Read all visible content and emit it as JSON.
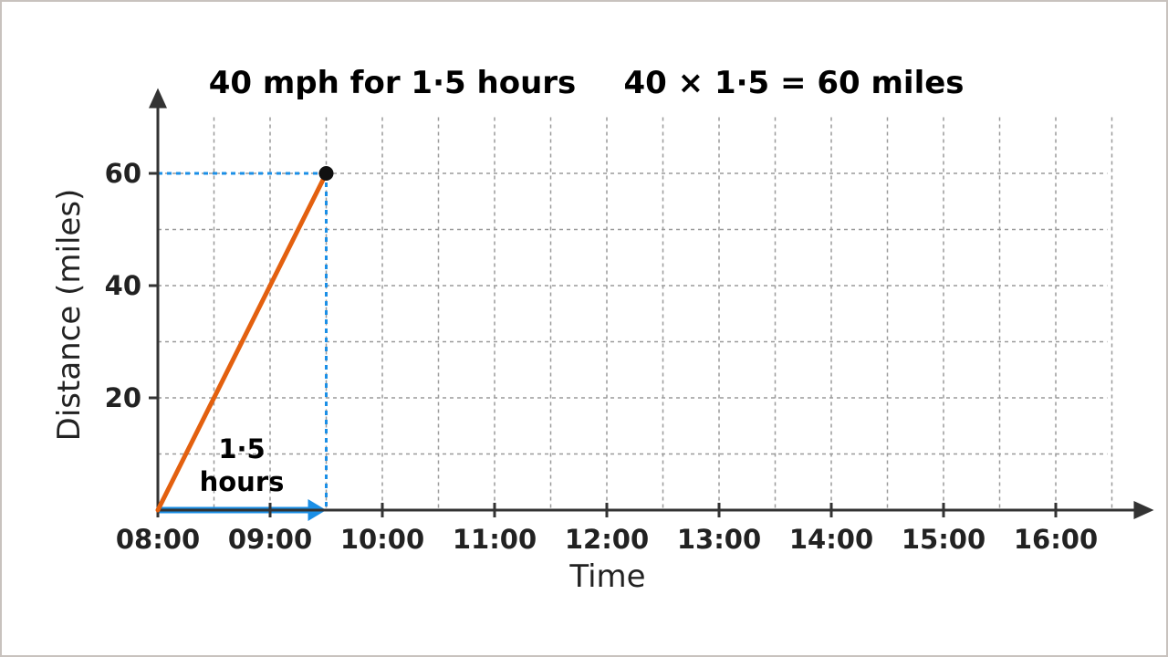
{
  "header": {
    "title_left": "40 mph for 1·5 hours",
    "title_right": "40 × 1·5 = 60 miles"
  },
  "colors": {
    "line": "#e3600f",
    "guide": "#1b8fe6",
    "axis": "#333333",
    "grid": "#9a9a9a",
    "point": "#111111"
  },
  "chart_data": {
    "type": "line",
    "title": "40 mph for 1·5 hours",
    "subtitle": "40 × 1·5 = 60 miles",
    "xlabel": "Time",
    "ylabel": "Distance (miles)",
    "x_ticks": [
      "08:00",
      "09:00",
      "10:00",
      "11:00",
      "12:00",
      "13:00",
      "14:00",
      "15:00",
      "16:00"
    ],
    "y_ticks": [
      20,
      40,
      60
    ],
    "xlim": [
      "08:00",
      "16:30"
    ],
    "ylim": [
      0,
      70
    ],
    "grid": true,
    "series": [
      {
        "x": [
          "08:00",
          "09:30"
        ],
        "y": [
          0,
          60
        ]
      }
    ],
    "annotations": {
      "duration_value": "1·5",
      "duration_unit": "hours",
      "end_point": {
        "x": "09:30",
        "y": 60
      }
    }
  }
}
